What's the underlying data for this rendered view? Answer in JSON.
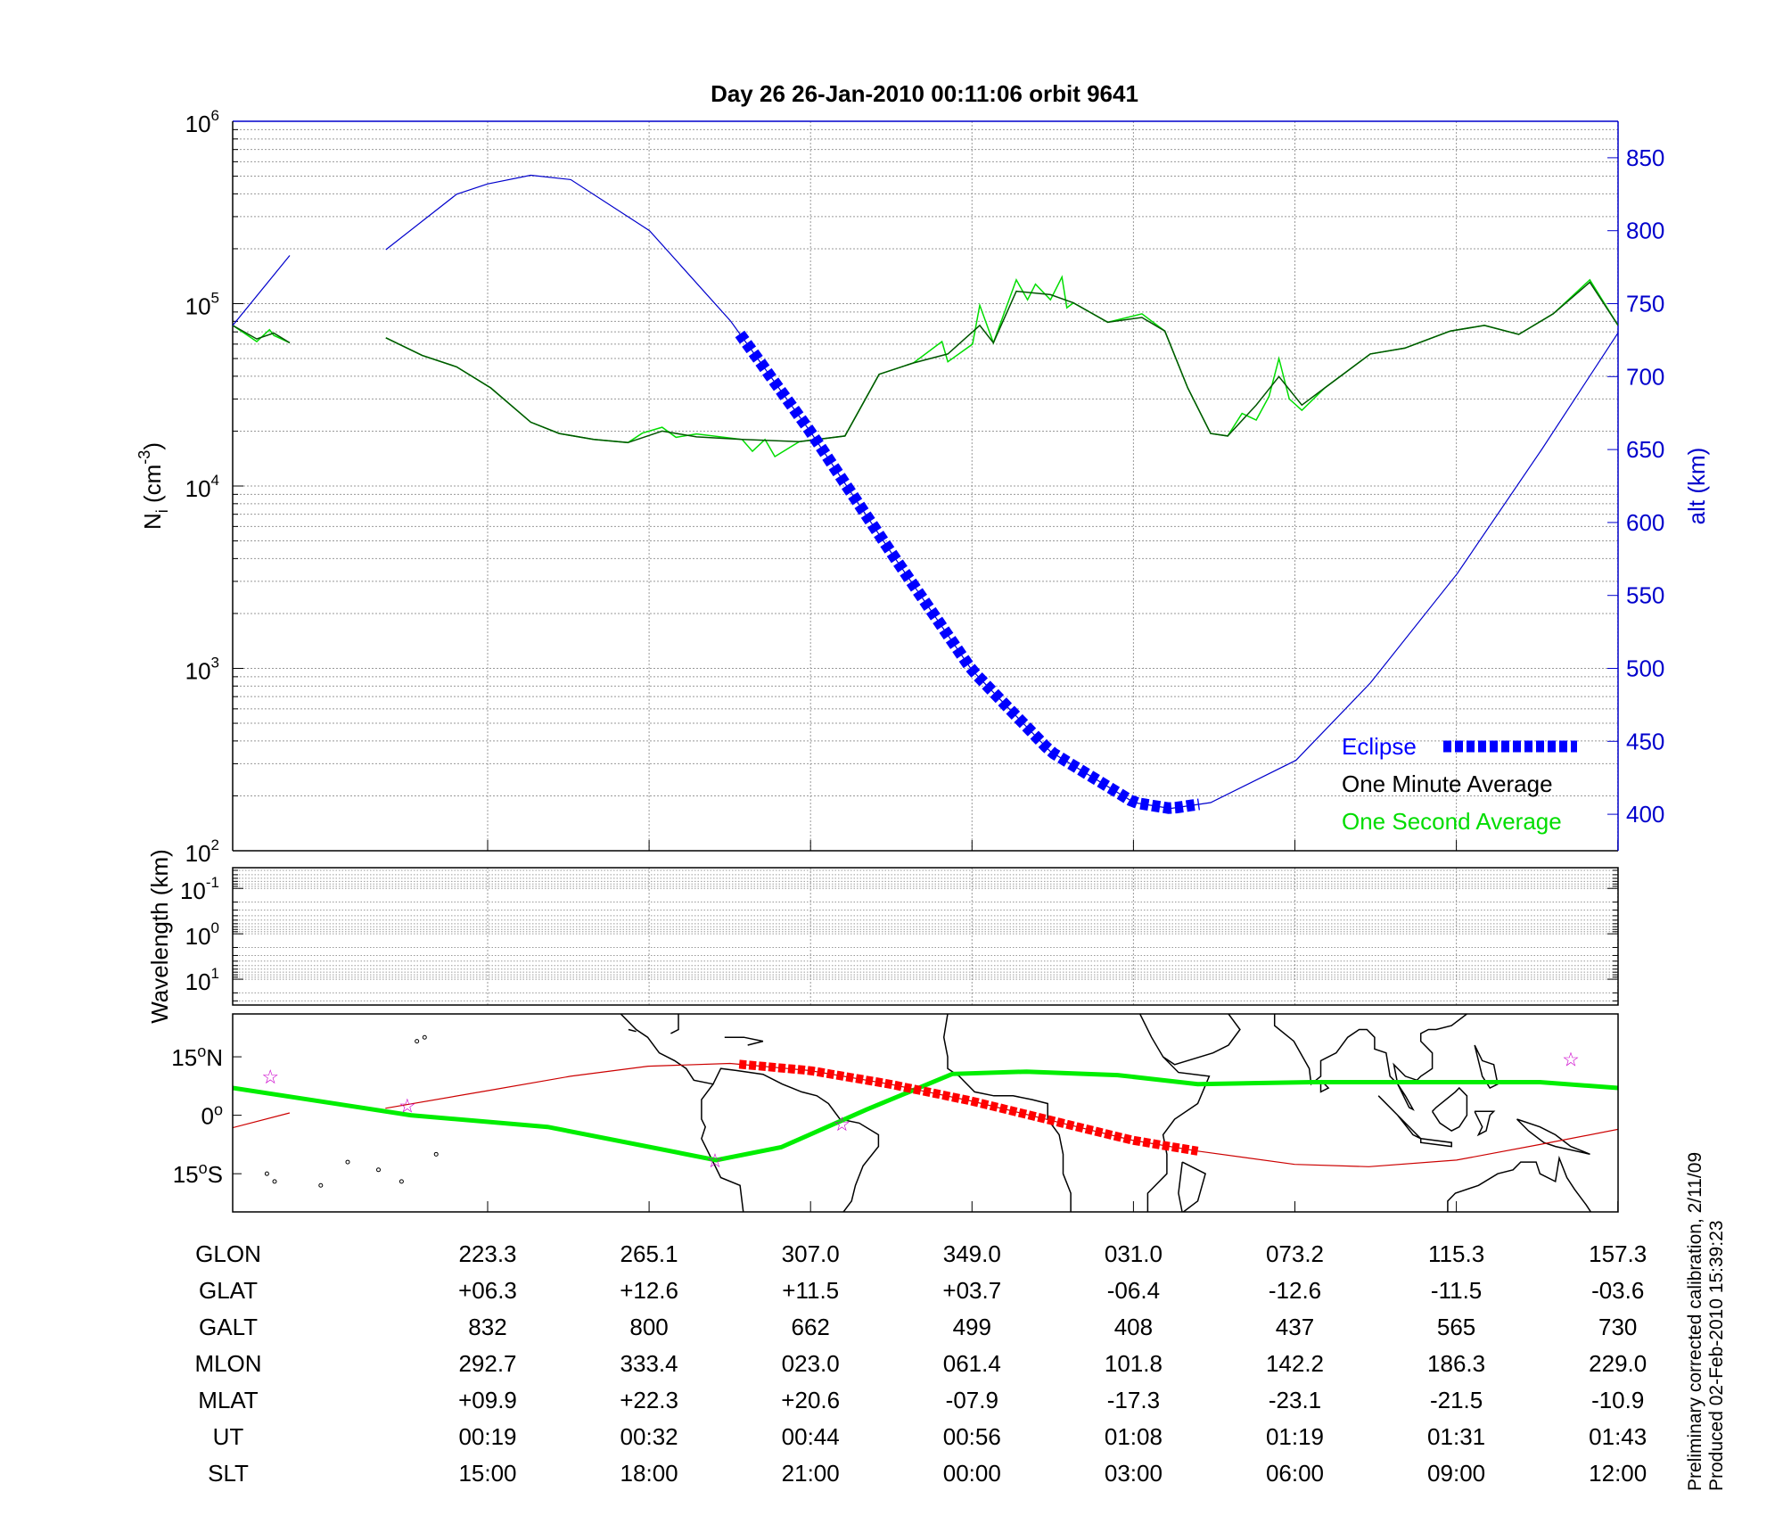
{
  "title": "Day 26  26-Jan-2010 00:11:06   orbit 9641",
  "colors": {
    "alt": "#0000cc",
    "eclipse": "#0000ff",
    "minute": "#005500",
    "second": "#00dd00",
    "track": "#cc0000",
    "track_eclipse": "#ff0000",
    "dip_equator": "#00ee00",
    "stars": "#cc00cc",
    "axis_right": "#0000cc"
  },
  "chart_data": [
    {
      "type": "line",
      "ylabel": {
        "base": "N",
        "sub": "i",
        "mid": " (cm",
        "sup": "-3",
        "end": ")"
      },
      "y_scale": "log",
      "ylim": [
        100,
        1000000
      ],
      "y_ticks": [
        {
          "base": "10",
          "exp": "6",
          "value": 1000000
        },
        {
          "base": "10",
          "exp": "5",
          "value": 100000
        },
        {
          "base": "10",
          "exp": "4",
          "value": 10000
        },
        {
          "base": "10",
          "exp": "3",
          "value": 1000
        },
        {
          "base": "10",
          "exp": "2",
          "value": 100
        }
      ],
      "y2label": "alt (km)",
      "y2lim": [
        375,
        875
      ],
      "y2_ticks": [
        400,
        450,
        500,
        550,
        600,
        650,
        700,
        750,
        800,
        850
      ],
      "xlim": [
        "00:00:06",
        "01:42:54"
      ],
      "grid": true,
      "legend": {
        "placement": "bottom-right",
        "entries": [
          {
            "label": "Eclipse",
            "color": "#0000ff",
            "marker": "thick-dashed"
          },
          {
            "label": "One Minute Average",
            "color": "#000000"
          },
          {
            "label": "One Second Average",
            "color": "#00dd00"
          }
        ]
      },
      "altitude": {
        "segments": [
          [
            [
              "00:00:06",
              735
            ],
            [
              "00:04:20",
              783
            ]
          ],
          [
            [
              "00:11:28",
              787
            ],
            [
              "00:16:43",
              825
            ],
            [
              "00:19:00",
              832
            ],
            [
              "00:22:13",
              838
            ],
            [
              "00:25:11",
              835
            ],
            [
              "00:31:02",
              800
            ],
            [
              "00:37:03",
              738
            ],
            [
              "00:42:59",
              662
            ],
            [
              "00:48:55",
              580
            ],
            [
              "00:54:56",
              499
            ],
            [
              "01:00:47",
              443
            ],
            [
              "01:06:59",
              408
            ],
            [
              "01:09:41",
              404
            ],
            [
              "01:12:40",
              408
            ],
            [
              "01:19:00",
              437
            ],
            [
              "01:24:31",
              490
            ],
            [
              "01:30:58",
              565
            ],
            [
              "01:37:14",
              650
            ],
            [
              "01:42:54",
              730
            ]
          ]
        ],
        "eclipse": [
          "00:37:44",
          "01:11:49"
        ]
      },
      "ni_one_minute": {
        "segments": [
          [
            [
              "00:00:06",
              76000
            ],
            [
              "00:01:53",
              64000
            ],
            [
              "00:03:09",
              69000
            ],
            [
              "00:04:20",
              61000
            ]
          ],
          [
            [
              "00:11:28",
              65000
            ],
            [
              "00:14:10",
              52000
            ],
            [
              "00:16:43",
              45000
            ],
            [
              "00:19:15",
              34500
            ],
            [
              "00:22:13",
              22400
            ],
            [
              "00:24:20",
              19400
            ],
            [
              "00:26:53",
              18000
            ],
            [
              "00:29:26",
              17300
            ],
            [
              "00:31:58",
              20000
            ],
            [
              "00:34:31",
              18600
            ],
            [
              "00:37:54",
              18000
            ],
            [
              "00:42:08",
              17500
            ],
            [
              "00:45:32",
              18800
            ],
            [
              "00:48:04",
              41000
            ],
            [
              "00:50:37",
              47300
            ],
            [
              "00:53:10",
              53000
            ],
            [
              "00:55:32",
              76000
            ],
            [
              "00:56:33",
              61000
            ],
            [
              "00:58:15",
              117000
            ],
            [
              "01:00:47",
              112000
            ],
            [
              "01:02:29",
              101000
            ],
            [
              "01:05:02",
              79000
            ],
            [
              "01:07:34",
              84000
            ],
            [
              "01:09:16",
              70800
            ],
            [
              "01:10:58",
              34500
            ],
            [
              "01:12:40",
              19400
            ],
            [
              "01:13:56",
              18800
            ],
            [
              "01:16:03",
              27800
            ],
            [
              "01:17:44",
              39800
            ],
            [
              "01:19:26",
              27800
            ],
            [
              "01:21:08",
              34500
            ],
            [
              "01:24:31",
              53000
            ],
            [
              "01:27:04",
              57000
            ],
            [
              "01:30:27",
              70800
            ],
            [
              "01:32:59",
              76000
            ],
            [
              "01:35:32",
              67800
            ],
            [
              "01:38:05",
              88000
            ],
            [
              "01:40:48",
              131000
            ],
            [
              "01:42:54",
              76000
            ]
          ]
        ]
      },
      "ni_one_second": {
        "segments": [
          [
            [
              "00:00:06",
              76000
            ],
            [
              "00:01:53",
              62000
            ],
            [
              "00:02:50",
              72000
            ],
            [
              "00:03:09",
              67000
            ],
            [
              "00:04:20",
              61000
            ]
          ],
          [
            [
              "00:11:28",
              65000
            ],
            [
              "00:14:10",
              52000
            ],
            [
              "00:16:43",
              45000
            ],
            [
              "00:19:15",
              34500
            ],
            [
              "00:22:13",
              22400
            ],
            [
              "00:24:20",
              19400
            ],
            [
              "00:26:53",
              18000
            ],
            [
              "00:29:26",
              17300
            ],
            [
              "00:30:30",
              19500
            ],
            [
              "00:31:58",
              21000
            ],
            [
              "00:33:00",
              18500
            ],
            [
              "00:34:31",
              19300
            ],
            [
              "00:37:54",
              18000
            ],
            [
              "00:38:40",
              15500
            ],
            [
              "00:39:36",
              18000
            ],
            [
              "00:40:20",
              14500
            ],
            [
              "00:42:08",
              17500
            ],
            [
              "00:45:32",
              18800
            ],
            [
              "00:48:04",
              41000
            ],
            [
              "00:50:37",
              47300
            ],
            [
              "00:52:44",
              62000
            ],
            [
              "00:53:10",
              48000
            ],
            [
              "00:55:00",
              60000
            ],
            [
              "00:55:32",
              98000
            ],
            [
              "00:56:33",
              61000
            ],
            [
              "00:58:15",
              135000
            ],
            [
              "00:59:05",
              105000
            ],
            [
              "00:59:40",
              128000
            ],
            [
              "01:00:47",
              105000
            ],
            [
              "01:01:38",
              140000
            ],
            [
              "01:02:00",
              95000
            ],
            [
              "01:02:29",
              101000
            ],
            [
              "01:05:02",
              79000
            ],
            [
              "01:07:34",
              88000
            ],
            [
              "01:09:16",
              70800
            ],
            [
              "01:10:58",
              34500
            ],
            [
              "01:12:40",
              19400
            ],
            [
              "01:13:56",
              18800
            ],
            [
              "01:15:00",
              25000
            ],
            [
              "01:16:03",
              23000
            ],
            [
              "01:17:00",
              31000
            ],
            [
              "01:17:44",
              50000
            ],
            [
              "01:18:30",
              30000
            ],
            [
              "01:19:26",
              26000
            ],
            [
              "01:21:08",
              34500
            ],
            [
              "01:24:31",
              53000
            ],
            [
              "01:27:04",
              57000
            ],
            [
              "01:30:27",
              70800
            ],
            [
              "01:32:59",
              76000
            ],
            [
              "01:35:32",
              67800
            ],
            [
              "01:38:05",
              88000
            ],
            [
              "01:40:48",
              135000
            ],
            [
              "01:42:54",
              76000
            ]
          ]
        ]
      }
    },
    {
      "type": "line",
      "ylabel": "Wavelength (km)",
      "y_scale": "log",
      "y_ticks": [
        {
          "base": "10",
          "exp": "-1",
          "value": 0.1
        },
        {
          "base": "10",
          "exp": "0",
          "value": 1
        },
        {
          "base": "10",
          "exp": "1",
          "value": 10
        }
      ],
      "ylim": [
        0.035,
        37
      ],
      "y_inverted": true,
      "grid": true,
      "series": []
    },
    {
      "type": "map",
      "lon_range": [
        157.1,
        517.3
      ],
      "lat_range": [
        -24.8,
        26
      ],
      "lat_ticks": [
        {
          "label": "15",
          "deg": "o",
          "hemi": "N",
          "value": 15
        },
        {
          "label": "0",
          "deg": "o",
          "hemi": "",
          "value": 0
        },
        {
          "label": "15",
          "deg": "o",
          "hemi": "S",
          "value": -15
        }
      ],
      "satellite_track": {
        "segments": [
          [
            [
              157.1,
              -3.2
            ],
            [
              171.9,
              0.6
            ]
          ],
          [
            [
              196.8,
              1.8
            ],
            [
              223.3,
              6.3
            ],
            [
              244.9,
              10.0
            ],
            [
              265.1,
              12.6
            ],
            [
              286.4,
              13.3
            ],
            [
              307.0,
              11.5
            ],
            [
              327.9,
              8.0
            ],
            [
              349.0,
              3.7
            ],
            [
              369.4,
              -1.2
            ],
            [
              391.0,
              -6.4
            ],
            [
              408.0,
              -9.2
            ],
            [
              433.2,
              -12.6
            ],
            [
              452.5,
              -13.2
            ],
            [
              475.3,
              -11.5
            ],
            [
              497.0,
              -7.5
            ],
            [
              517.3,
              -3.6
            ]
          ]
        ],
        "eclipse_lon": [
          288.8,
          408.0
        ]
      },
      "dip_equator": [
        [
          157.1,
          7.0
        ],
        [
          203.4,
          0
        ],
        [
          239,
          -3
        ],
        [
          282.8,
          -11.5
        ],
        [
          299.7,
          -8.2
        ],
        [
          322,
          1.5
        ],
        [
          344.2,
          10.6
        ],
        [
          363.5,
          11.2
        ],
        [
          387.2,
          10.3
        ],
        [
          408,
          8
        ],
        [
          437.6,
          8.5
        ],
        [
          467.3,
          8.5
        ],
        [
          497,
          8.5
        ],
        [
          517.3,
          7
        ]
      ],
      "stars": [
        [
          166.9,
          10.0
        ],
        [
          202.5,
          2.6
        ],
        [
          282.5,
          -11.5
        ],
        [
          315.5,
          -2.1
        ],
        [
          505.0,
          14.4
        ]
      ]
    }
  ],
  "table": {
    "rows": [
      {
        "label": "GLON",
        "values": [
          "223.3",
          "265.1",
          "307.0",
          "349.0",
          "031.0",
          "073.2",
          "115.3",
          "157.3"
        ]
      },
      {
        "label": "GLAT",
        "values": [
          "+06.3",
          "+12.6",
          "+11.5",
          "+03.7",
          "-06.4",
          "-12.6",
          "-11.5",
          "-03.6"
        ]
      },
      {
        "label": "GALT",
        "values": [
          "832",
          "800",
          "662",
          "499",
          "408",
          "437",
          "565",
          "730"
        ]
      },
      {
        "label": "MLON",
        "values": [
          "292.7",
          "333.4",
          "023.0",
          "061.4",
          "101.8",
          "142.2",
          "186.3",
          "229.0"
        ]
      },
      {
        "label": "MLAT",
        "values": [
          "+09.9",
          "+22.3",
          "+20.6",
          "-07.9",
          "-17.3",
          "-23.1",
          "-21.5",
          "-10.9"
        ]
      },
      {
        "label": "UT",
        "values": [
          "00:19",
          "00:32",
          "00:44",
          "00:56",
          "01:08",
          "01:19",
          "01:31",
          "01:43"
        ]
      },
      {
        "label": "SLT",
        "values": [
          "15:00",
          "18:00",
          "21:00",
          "00:00",
          "03:00",
          "06:00",
          "09:00",
          "12:00"
        ]
      }
    ]
  },
  "footer": {
    "line1": "Preliminary corrected calibration, 2/11/09",
    "line2": "Produced 02-Feb-2010 15:39:23"
  }
}
